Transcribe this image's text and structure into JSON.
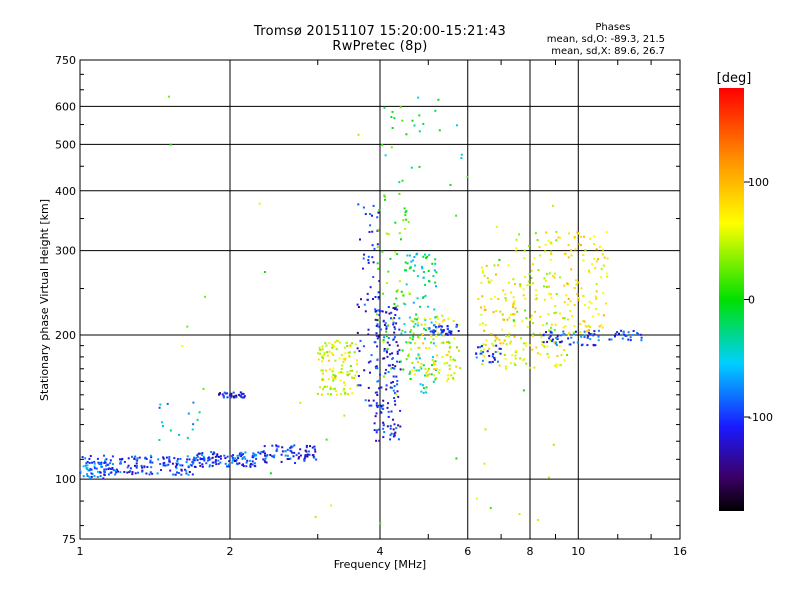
{
  "chart_data": {
    "type": "scatter",
    "title": "Tromsø 20151107 15:20:00-15:21:43",
    "subtitle": "RwPretec (8p)",
    "xlabel": "Frequency [MHz]",
    "ylabel": "Stationary phase Virtual Height [km]",
    "x_scale": "log",
    "y_scale": "log",
    "xlim": [
      1,
      16
    ],
    "ylim": [
      75,
      750
    ],
    "x_ticks": [
      1,
      2,
      4,
      6,
      8,
      10,
      16
    ],
    "y_ticks": [
      75,
      100,
      200,
      300,
      400,
      500,
      600,
      750
    ],
    "grid": true,
    "annotation": {
      "heading": "Phases",
      "line1": "mean, sd,O: -89.3, 21.5",
      "line2": "mean, sd,X: 89.6, 26.7"
    },
    "colorbar": {
      "label": "[deg]",
      "ticks": [
        100,
        0,
        -100
      ],
      "range": [
        -180,
        180
      ]
    },
    "clusters": [
      {
        "xr": [
          1.0,
          1.15
        ],
        "yr": [
          100,
          112
        ],
        "phase": -90,
        "n": 70
      },
      {
        "xr": [
          1.15,
          1.7
        ],
        "yr": [
          102,
          112
        ],
        "phase": -100,
        "n": 130
      },
      {
        "xr": [
          1.7,
          2.3
        ],
        "yr": [
          106,
          114
        ],
        "phase": -100,
        "n": 110
      },
      {
        "xr": [
          2.3,
          3.0
        ],
        "yr": [
          108,
          118
        ],
        "phase": -105,
        "n": 80
      },
      {
        "xr": [
          1.9,
          2.15
        ],
        "yr": [
          148,
          152
        ],
        "phase": -110,
        "n": 35
      },
      {
        "xr": [
          1.4,
          1.75
        ],
        "yr": [
          120,
          145
        ],
        "phase": -60,
        "n": 15
      },
      {
        "xr": [
          3.0,
          3.6
        ],
        "yr": [
          150,
          195
        ],
        "phase": 60,
        "n": 120
      },
      {
        "xr": [
          3.6,
          4.0
        ],
        "yr": [
          140,
          380
        ],
        "phase": -110,
        "n": 70
      },
      {
        "xr": [
          3.9,
          4.4
        ],
        "yr": [
          120,
          230
        ],
        "phase": -110,
        "n": 160
      },
      {
        "xr": [
          3.9,
          4.6
        ],
        "yr": [
          150,
          400
        ],
        "phase": 20,
        "n": 60
      },
      {
        "xr": [
          4.4,
          5.2
        ],
        "yr": [
          150,
          300
        ],
        "phase": -30,
        "n": 100
      },
      {
        "xr": [
          4.6,
          5.8
        ],
        "yr": [
          160,
          220
        ],
        "phase": 60,
        "n": 100
      },
      {
        "xr": [
          5.0,
          5.8
        ],
        "yr": [
          200,
          210
        ],
        "phase": -100,
        "n": 40
      },
      {
        "xr": [
          6.3,
          7.5
        ],
        "yr": [
          170,
          280
        ],
        "phase": 70,
        "n": 90
      },
      {
        "xr": [
          6.2,
          7.0
        ],
        "yr": [
          175,
          190
        ],
        "phase": -100,
        "n": 25
      },
      {
        "xr": [
          7.4,
          9.5
        ],
        "yr": [
          170,
          330
        ],
        "phase": 60,
        "n": 140
      },
      {
        "xr": [
          8.5,
          11.0
        ],
        "yr": [
          190,
          205
        ],
        "phase": -100,
        "n": 60
      },
      {
        "xr": [
          9.5,
          11.5
        ],
        "yr": [
          200,
          330
        ],
        "phase": 80,
        "n": 90
      },
      {
        "xr": [
          11.5,
          13.5
        ],
        "yr": [
          195,
          205
        ],
        "phase": -100,
        "n": 25
      },
      {
        "xr": [
          1.5,
          10
        ],
        "yr": [
          75,
          700
        ],
        "phase": 30,
        "n": 40
      },
      {
        "xr": [
          4,
          6
        ],
        "yr": [
          400,
          650
        ],
        "phase": -20,
        "n": 25
      }
    ]
  }
}
